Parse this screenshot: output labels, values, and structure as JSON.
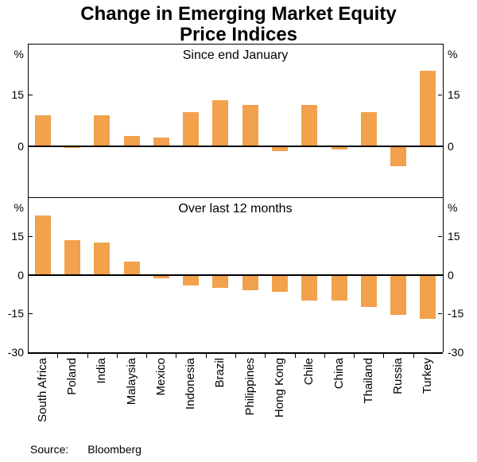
{
  "title_line1": "Change in Emerging Market Equity",
  "title_line2": "Price Indices",
  "footer": {
    "source_label": "Source:",
    "source_value": "Bloomberg"
  },
  "chart_data": {
    "type": "bar",
    "title": "Change in Emerging Market Equity Price Indices",
    "unit": "%",
    "bar_color": "#F2A14D",
    "grid": false,
    "legend_position": "none",
    "categories": [
      "South Africa",
      "Poland",
      "India",
      "Malaysia",
      "Mexico",
      "Indonesia",
      "Brazil",
      "Philippines",
      "Hong Kong",
      "Chile",
      "China",
      "Thailand",
      "Russia",
      "Turkey"
    ],
    "panels": [
      {
        "subtitle": "Since end January",
        "ylim": [
          -15,
          30
        ],
        "yticks": [
          15,
          0
        ],
        "values": [
          9,
          -0.5,
          9,
          3,
          2.5,
          10,
          13.5,
          12,
          -1.5,
          12,
          -1,
          10,
          -6,
          22
        ]
      },
      {
        "subtitle": "Over last 12 months",
        "ylim": [
          -30,
          30
        ],
        "yticks": [
          15,
          0,
          -15,
          -30
        ],
        "values": [
          23,
          13.5,
          12.5,
          5,
          -1.5,
          -4,
          -5,
          -6,
          -6.5,
          -10,
          -10,
          -12.5,
          -15.5,
          -17
        ]
      }
    ],
    "source": "Bloomberg"
  }
}
